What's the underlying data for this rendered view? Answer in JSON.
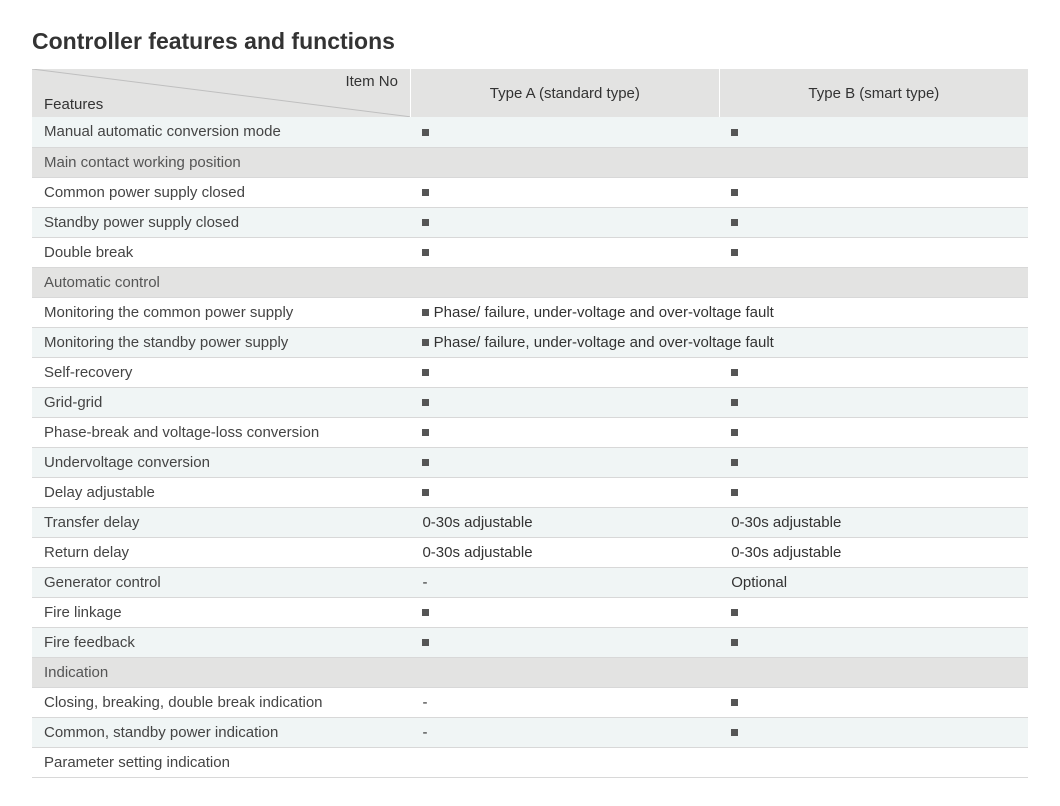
{
  "title": "Controller features and functions",
  "table": {
    "header": {
      "diagonal_top": "Item No",
      "diagonal_bottom": "Features",
      "col_a": "Type A (standard type)",
      "col_b": "Type B (smart type)"
    },
    "colors": {
      "header_bg": "#e3e3e2",
      "section_bg": "#e3e3e2",
      "row_odd_bg": "#f0f5f5",
      "row_even_bg": "#ffffff",
      "border": "#d8d8d8",
      "square": "#555555",
      "diag_line": "#bfbfbf",
      "text": "#333333"
    },
    "font_size_pt": 11,
    "rows": [
      {
        "kind": "data",
        "stripe": "odd",
        "feature": "Manual automatic conversion mode",
        "a": "■",
        "b": "■"
      },
      {
        "kind": "section",
        "feature": "Main contact working position"
      },
      {
        "kind": "data",
        "stripe": "even",
        "feature": "Common power supply closed",
        "a": "■",
        "b": "■"
      },
      {
        "kind": "data",
        "stripe": "odd",
        "feature": "Standby power supply closed",
        "a": "■",
        "b": "■"
      },
      {
        "kind": "data",
        "stripe": "even",
        "feature": "Double break",
        "a": "■",
        "b": "■"
      },
      {
        "kind": "section",
        "feature": "Automatic control"
      },
      {
        "kind": "data",
        "stripe": "even",
        "feature": "Monitoring the common power supply",
        "merged": "■ Phase/ failure, under-voltage and over-voltage fault"
      },
      {
        "kind": "data",
        "stripe": "odd",
        "feature": "Monitoring the standby power supply",
        "merged": "■ Phase/ failure, under-voltage and over-voltage fault"
      },
      {
        "kind": "data",
        "stripe": "even",
        "feature": "Self-recovery",
        "a": "■",
        "b": "■"
      },
      {
        "kind": "data",
        "stripe": "odd",
        "feature": "Grid-grid",
        "a": "■",
        "b": "■"
      },
      {
        "kind": "data",
        "stripe": "even",
        "feature": "Phase-break and voltage-loss conversion",
        "a": "■",
        "b": "■"
      },
      {
        "kind": "data",
        "stripe": "odd",
        "feature": "Undervoltage conversion",
        "a": "■",
        "b": "■"
      },
      {
        "kind": "data",
        "stripe": "even",
        "feature": "Delay adjustable",
        "a": "■",
        "b": "■"
      },
      {
        "kind": "data",
        "stripe": "odd",
        "feature": "Transfer delay",
        "a": "0-30s adjustable",
        "b": "0-30s adjustable"
      },
      {
        "kind": "data",
        "stripe": "even",
        "feature": "Return delay",
        "a": "0-30s adjustable",
        "b": "0-30s adjustable"
      },
      {
        "kind": "data",
        "stripe": "odd",
        "feature": "Generator control",
        "a": "-",
        "b": "Optional"
      },
      {
        "kind": "data",
        "stripe": "even",
        "feature": "Fire linkage",
        "a": "■",
        "b": "■"
      },
      {
        "kind": "data",
        "stripe": "odd",
        "feature": "Fire feedback",
        "a": "■",
        "b": "■"
      },
      {
        "kind": "section",
        "feature": "Indication"
      },
      {
        "kind": "data",
        "stripe": "even",
        "feature": "Closing, breaking, double break indication",
        "a": "-",
        "b": "■"
      },
      {
        "kind": "data",
        "stripe": "odd",
        "feature": "Common, standby power indication",
        "a": "-",
        "b": "■"
      },
      {
        "kind": "data",
        "stripe": "even",
        "feature": "Parameter setting indication",
        "a": "",
        "b": ""
      }
    ]
  }
}
